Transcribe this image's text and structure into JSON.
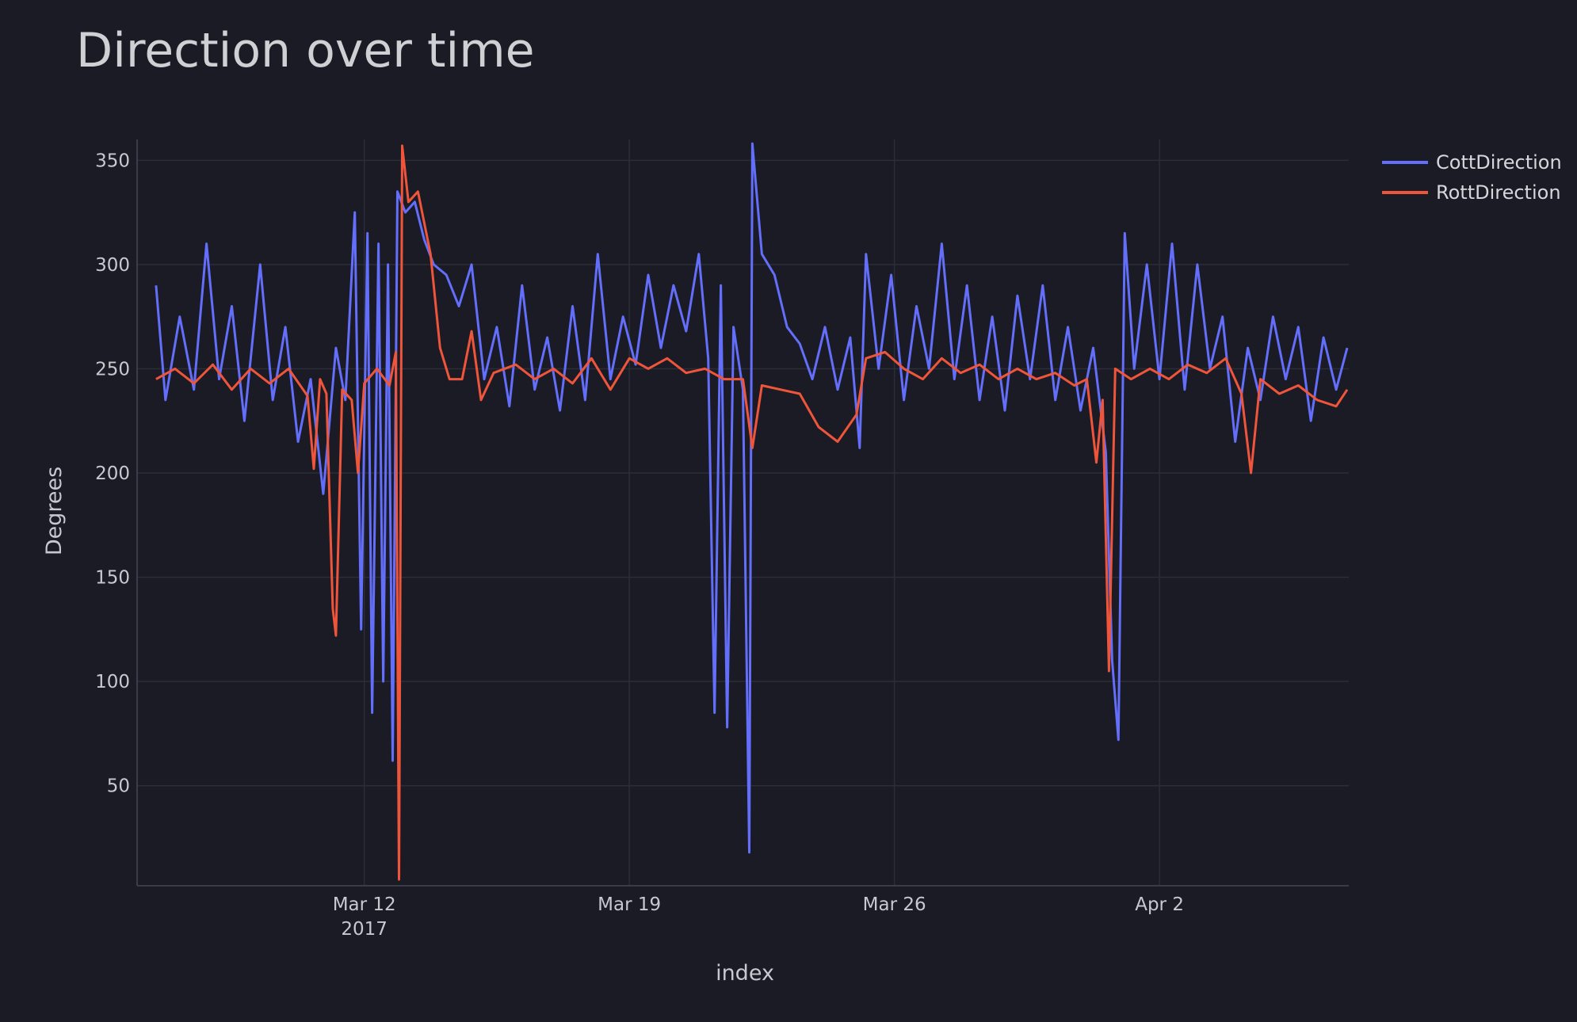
{
  "chart_data": {
    "type": "line",
    "title": "Direction over time",
    "xlabel": "index",
    "ylabel": "Degrees",
    "ylim": [
      2,
      360
    ],
    "yticks": [
      50,
      100,
      150,
      200,
      250,
      300,
      350
    ],
    "xlim": [
      "2017-03-06",
      "2017-04-07"
    ],
    "xticks": [
      {
        "date": "2017-03-12",
        "label": "Mar 12",
        "sublabel": "2017"
      },
      {
        "date": "2017-03-19",
        "label": "Mar 19",
        "sublabel": ""
      },
      {
        "date": "2017-03-26",
        "label": "Mar 26",
        "sublabel": ""
      },
      {
        "date": "2017-04-02",
        "label": "Apr 2",
        "sublabel": ""
      }
    ],
    "grid": true,
    "legend_position": "top-right",
    "series": [
      {
        "name": "CottDirection",
        "color": "#636efa",
        "points": [
          [
            "2017-03-06T12:00",
            290
          ],
          [
            "2017-03-06T18:00",
            235
          ],
          [
            "2017-03-07T03:00",
            275
          ],
          [
            "2017-03-07T12:00",
            240
          ],
          [
            "2017-03-07T20:00",
            310
          ],
          [
            "2017-03-08T04:00",
            245
          ],
          [
            "2017-03-08T12:00",
            280
          ],
          [
            "2017-03-08T20:00",
            225
          ],
          [
            "2017-03-09T06:00",
            300
          ],
          [
            "2017-03-09T14:00",
            235
          ],
          [
            "2017-03-09T22:00",
            270
          ],
          [
            "2017-03-10T06:00",
            215
          ],
          [
            "2017-03-10T14:00",
            245
          ],
          [
            "2017-03-10T22:00",
            190
          ],
          [
            "2017-03-11T06:00",
            260
          ],
          [
            "2017-03-11T12:00",
            235
          ],
          [
            "2017-03-11T18:00",
            325
          ],
          [
            "2017-03-11T22:00",
            125
          ],
          [
            "2017-03-12T02:00",
            315
          ],
          [
            "2017-03-12T05:00",
            85
          ],
          [
            "2017-03-12T09:00",
            310
          ],
          [
            "2017-03-12T12:00",
            100
          ],
          [
            "2017-03-12T15:00",
            300
          ],
          [
            "2017-03-12T18:00",
            62
          ],
          [
            "2017-03-12T21:00",
            335
          ],
          [
            "2017-03-13T02:00",
            325
          ],
          [
            "2017-03-13T08:00",
            330
          ],
          [
            "2017-03-13T14:00",
            312
          ],
          [
            "2017-03-13T20:00",
            300
          ],
          [
            "2017-03-14T04:00",
            295
          ],
          [
            "2017-03-14T12:00",
            280
          ],
          [
            "2017-03-14T20:00",
            300
          ],
          [
            "2017-03-15T04:00",
            245
          ],
          [
            "2017-03-15T12:00",
            270
          ],
          [
            "2017-03-15T20:00",
            232
          ],
          [
            "2017-03-16T04:00",
            290
          ],
          [
            "2017-03-16T12:00",
            240
          ],
          [
            "2017-03-16T20:00",
            265
          ],
          [
            "2017-03-17T04:00",
            230
          ],
          [
            "2017-03-17T12:00",
            280
          ],
          [
            "2017-03-17T20:00",
            235
          ],
          [
            "2017-03-18T04:00",
            305
          ],
          [
            "2017-03-18T12:00",
            245
          ],
          [
            "2017-03-18T20:00",
            275
          ],
          [
            "2017-03-19T04:00",
            252
          ],
          [
            "2017-03-19T12:00",
            295
          ],
          [
            "2017-03-19T20:00",
            260
          ],
          [
            "2017-03-20T04:00",
            290
          ],
          [
            "2017-03-20T12:00",
            268
          ],
          [
            "2017-03-20T20:00",
            305
          ],
          [
            "2017-03-21T02:00",
            255
          ],
          [
            "2017-03-21T06:00",
            85
          ],
          [
            "2017-03-21T10:00",
            290
          ],
          [
            "2017-03-21T14:00",
            78
          ],
          [
            "2017-03-21T18:00",
            270
          ],
          [
            "2017-03-22T00:00",
            240
          ],
          [
            "2017-03-22T04:00",
            18
          ],
          [
            "2017-03-22T06:00",
            358
          ],
          [
            "2017-03-22T12:00",
            305
          ],
          [
            "2017-03-22T20:00",
            295
          ],
          [
            "2017-03-23T04:00",
            270
          ],
          [
            "2017-03-23T12:00",
            262
          ],
          [
            "2017-03-23T20:00",
            245
          ],
          [
            "2017-03-24T04:00",
            270
          ],
          [
            "2017-03-24T12:00",
            240
          ],
          [
            "2017-03-24T20:00",
            265
          ],
          [
            "2017-03-25T02:00",
            212
          ],
          [
            "2017-03-25T06:00",
            305
          ],
          [
            "2017-03-25T14:00",
            250
          ],
          [
            "2017-03-25T22:00",
            295
          ],
          [
            "2017-03-26T06:00",
            235
          ],
          [
            "2017-03-26T14:00",
            280
          ],
          [
            "2017-03-26T22:00",
            250
          ],
          [
            "2017-03-27T06:00",
            310
          ],
          [
            "2017-03-27T14:00",
            245
          ],
          [
            "2017-03-27T22:00",
            290
          ],
          [
            "2017-03-28T06:00",
            235
          ],
          [
            "2017-03-28T14:00",
            275
          ],
          [
            "2017-03-28T22:00",
            230
          ],
          [
            "2017-03-29T06:00",
            285
          ],
          [
            "2017-03-29T14:00",
            245
          ],
          [
            "2017-03-29T22:00",
            290
          ],
          [
            "2017-03-30T06:00",
            235
          ],
          [
            "2017-03-30T14:00",
            270
          ],
          [
            "2017-03-30T22:00",
            230
          ],
          [
            "2017-03-31T06:00",
            260
          ],
          [
            "2017-03-31T14:00",
            210
          ],
          [
            "2017-03-31T18:00",
            110
          ],
          [
            "2017-03-31T22:00",
            72
          ],
          [
            "2017-04-01T02:00",
            315
          ],
          [
            "2017-04-01T08:00",
            250
          ],
          [
            "2017-04-01T16:00",
            300
          ],
          [
            "2017-04-02T00:00",
            245
          ],
          [
            "2017-04-02T08:00",
            310
          ],
          [
            "2017-04-02T16:00",
            240
          ],
          [
            "2017-04-03T00:00",
            300
          ],
          [
            "2017-04-03T08:00",
            250
          ],
          [
            "2017-04-03T16:00",
            275
          ],
          [
            "2017-04-04T00:00",
            215
          ],
          [
            "2017-04-04T08:00",
            260
          ],
          [
            "2017-04-04T16:00",
            235
          ],
          [
            "2017-04-05T00:00",
            275
          ],
          [
            "2017-04-05T08:00",
            245
          ],
          [
            "2017-04-05T16:00",
            270
          ],
          [
            "2017-04-06T00:00",
            225
          ],
          [
            "2017-04-06T08:00",
            265
          ],
          [
            "2017-04-06T16:00",
            240
          ],
          [
            "2017-04-06T23:00",
            260
          ]
        ]
      },
      {
        "name": "RottDirection",
        "color": "#ef553b",
        "points": [
          [
            "2017-03-06T12:00",
            245
          ],
          [
            "2017-03-07T00:00",
            250
          ],
          [
            "2017-03-07T12:00",
            243
          ],
          [
            "2017-03-08T00:00",
            252
          ],
          [
            "2017-03-08T12:00",
            240
          ],
          [
            "2017-03-09T00:00",
            250
          ],
          [
            "2017-03-09T12:00",
            243
          ],
          [
            "2017-03-10T00:00",
            250
          ],
          [
            "2017-03-10T12:00",
            237
          ],
          [
            "2017-03-10T16:00",
            202
          ],
          [
            "2017-03-10T20:00",
            245
          ],
          [
            "2017-03-11T00:00",
            238
          ],
          [
            "2017-03-11T04:00",
            135
          ],
          [
            "2017-03-11T06:00",
            122
          ],
          [
            "2017-03-11T10:00",
            240
          ],
          [
            "2017-03-11T16:00",
            235
          ],
          [
            "2017-03-11T20:00",
            200
          ],
          [
            "2017-03-12T00:00",
            243
          ],
          [
            "2017-03-12T08:00",
            250
          ],
          [
            "2017-03-12T16:00",
            242
          ],
          [
            "2017-03-12T20:00",
            258
          ],
          [
            "2017-03-12T22:00",
            5
          ],
          [
            "2017-03-13T00:00",
            357
          ],
          [
            "2017-03-13T04:00",
            330
          ],
          [
            "2017-03-13T10:00",
            335
          ],
          [
            "2017-03-13T18:00",
            305
          ],
          [
            "2017-03-14T00:00",
            260
          ],
          [
            "2017-03-14T06:00",
            245
          ],
          [
            "2017-03-14T14:00",
            245
          ],
          [
            "2017-03-14T20:00",
            268
          ],
          [
            "2017-03-15T02:00",
            235
          ],
          [
            "2017-03-15T10:00",
            248
          ],
          [
            "2017-03-16T00:00",
            252
          ],
          [
            "2017-03-16T12:00",
            245
          ],
          [
            "2017-03-17T00:00",
            250
          ],
          [
            "2017-03-17T12:00",
            243
          ],
          [
            "2017-03-18T00:00",
            255
          ],
          [
            "2017-03-18T12:00",
            240
          ],
          [
            "2017-03-19T00:00",
            255
          ],
          [
            "2017-03-19T12:00",
            250
          ],
          [
            "2017-03-20T00:00",
            255
          ],
          [
            "2017-03-20T12:00",
            248
          ],
          [
            "2017-03-21T00:00",
            250
          ],
          [
            "2017-03-21T12:00",
            245
          ],
          [
            "2017-03-22T00:00",
            245
          ],
          [
            "2017-03-22T06:00",
            212
          ],
          [
            "2017-03-22T12:00",
            242
          ],
          [
            "2017-03-23T00:00",
            240
          ],
          [
            "2017-03-23T12:00",
            238
          ],
          [
            "2017-03-24T00:00",
            222
          ],
          [
            "2017-03-24T12:00",
            215
          ],
          [
            "2017-03-25T00:00",
            228
          ],
          [
            "2017-03-25T06:00",
            255
          ],
          [
            "2017-03-25T18:00",
            258
          ],
          [
            "2017-03-26T06:00",
            250
          ],
          [
            "2017-03-26T18:00",
            245
          ],
          [
            "2017-03-27T06:00",
            255
          ],
          [
            "2017-03-27T18:00",
            248
          ],
          [
            "2017-03-28T06:00",
            252
          ],
          [
            "2017-03-28T18:00",
            245
          ],
          [
            "2017-03-29T06:00",
            250
          ],
          [
            "2017-03-29T18:00",
            245
          ],
          [
            "2017-03-30T06:00",
            248
          ],
          [
            "2017-03-30T18:00",
            242
          ],
          [
            "2017-03-31T02:00",
            245
          ],
          [
            "2017-03-31T08:00",
            205
          ],
          [
            "2017-03-31T12:00",
            235
          ],
          [
            "2017-03-31T16:00",
            105
          ],
          [
            "2017-03-31T20:00",
            250
          ],
          [
            "2017-04-01T06:00",
            245
          ],
          [
            "2017-04-01T18:00",
            250
          ],
          [
            "2017-04-02T06:00",
            245
          ],
          [
            "2017-04-02T18:00",
            252
          ],
          [
            "2017-04-03T06:00",
            248
          ],
          [
            "2017-04-03T18:00",
            255
          ],
          [
            "2017-04-04T04:00",
            238
          ],
          [
            "2017-04-04T10:00",
            200
          ],
          [
            "2017-04-04T16:00",
            245
          ],
          [
            "2017-04-05T04:00",
            238
          ],
          [
            "2017-04-05T16:00",
            242
          ],
          [
            "2017-04-06T04:00",
            235
          ],
          [
            "2017-04-06T16:00",
            232
          ],
          [
            "2017-04-06T23:00",
            240
          ]
        ]
      }
    ]
  }
}
